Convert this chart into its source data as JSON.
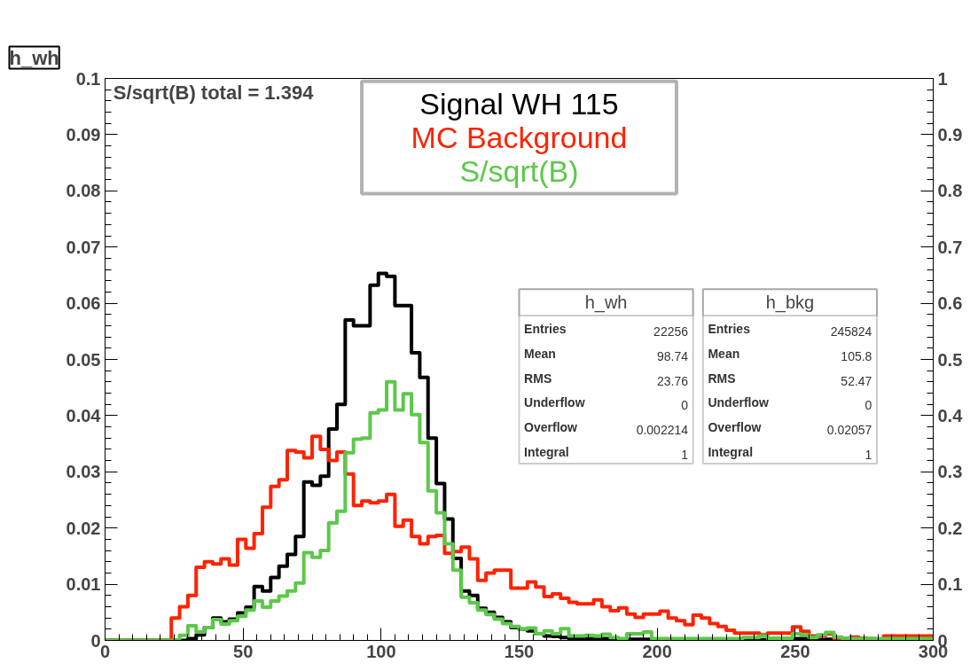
{
  "chart_data": {
    "type": "histogram",
    "title": "h_wh",
    "bins": [
      0,
      3,
      6,
      9,
      12,
      15,
      18,
      21,
      24,
      27,
      30,
      33,
      36,
      39,
      42,
      45,
      48,
      51,
      54,
      57,
      60,
      63,
      66,
      69,
      72,
      75,
      78,
      81,
      84,
      87,
      90,
      93,
      96,
      99,
      102,
      105,
      108,
      111,
      114,
      117,
      120,
      123,
      126,
      129,
      132,
      135,
      138,
      141,
      144,
      147,
      150,
      153,
      156,
      159,
      162,
      165,
      168,
      171,
      174,
      177,
      180,
      183,
      186,
      189,
      192,
      195,
      198,
      201,
      204,
      207,
      210,
      213,
      216,
      219,
      222,
      225,
      228,
      231,
      234,
      237,
      240,
      243,
      246,
      249,
      252,
      255,
      258,
      261,
      264,
      267,
      270,
      273,
      276,
      279,
      282,
      285,
      288,
      291,
      294,
      297,
      300
    ],
    "series": [
      {
        "name": "Signal WH 115",
        "color": "#000000",
        "values": [
          0,
          0,
          0,
          0,
          0,
          0,
          0,
          0,
          0,
          0,
          0.0003,
          0.001,
          0.0023,
          0.004,
          0.0033,
          0.0038,
          0.0049,
          0.0059,
          0.0096,
          0.0088,
          0.0112,
          0.0132,
          0.0153,
          0.0185,
          0.0282,
          0.0276,
          0.0292,
          0.0376,
          0.042,
          0.057,
          0.056,
          0.056,
          0.0632,
          0.0653,
          0.0648,
          0.0596,
          0.0596,
          0.0512,
          0.0468,
          0.036,
          0.0279,
          0.0216,
          0.0146,
          0.0088,
          0.008,
          0.0057,
          0.005,
          0.0041,
          0.0033,
          0.0023,
          0.002,
          0.0017,
          0.0012,
          0.0008,
          0.0007,
          0.0005,
          0.0003,
          0.0004,
          0.0003,
          0.0002,
          0.0003,
          0.0002,
          0.0002,
          0.0002,
          0.0002,
          0.0002,
          0.0001,
          0.0001,
          0.0001,
          0.0001,
          0.0001,
          0.0001,
          0.0001,
          0.0001,
          0.0001,
          0.0001,
          0.0001,
          0.0001,
          0.0001,
          0.0001,
          0.0001,
          0.0001,
          0.0001,
          0.0003,
          0.0003,
          0.0001,
          0.0001,
          0.0002,
          0.0001,
          0.0001,
          0,
          0,
          0,
          0,
          0,
          0,
          0,
          0,
          0,
          0
        ]
      },
      {
        "name": "MC Background",
        "color": "#ff2200",
        "values": [
          0,
          0,
          0,
          0,
          0,
          0,
          0,
          0,
          0.004,
          0.006,
          0.008,
          0.013,
          0.014,
          0.0136,
          0.0145,
          0.0134,
          0.018,
          0.0164,
          0.019,
          0.0237,
          0.0274,
          0.0286,
          0.0338,
          0.0335,
          0.0325,
          0.0363,
          0.034,
          0.032,
          0.0335,
          0.0296,
          0.024,
          0.0248,
          0.0245,
          0.0248,
          0.026,
          0.0203,
          0.0214,
          0.0185,
          0.0172,
          0.0185,
          0.0187,
          0.0155,
          0.0158,
          0.0166,
          0.0145,
          0.0107,
          0.012,
          0.0125,
          0.0125,
          0.0093,
          0.0093,
          0.0104,
          0.0095,
          0.0078,
          0.0083,
          0.0075,
          0.0068,
          0.0065,
          0.0065,
          0.0072,
          0.006,
          0.0053,
          0.0058,
          0.0047,
          0.0041,
          0.0047,
          0.0047,
          0.0052,
          0.004,
          0.0035,
          0.0028,
          0.0045,
          0.004,
          0.003,
          0.0025,
          0.0018,
          0.0013,
          0.0013,
          0.0013,
          0.001,
          0.0013,
          0.0013,
          0.0013,
          0.0024,
          0.0016,
          0.0008,
          0.0008,
          0.0012,
          0.0004,
          0.0002,
          0.0006,
          0.0004,
          0.0003,
          0.0002,
          0.0008,
          0.0008,
          0.0008,
          0.0008,
          0.0008,
          0.0008
        ]
      },
      {
        "name": "S/sqrt(B)",
        "color": "#5cc84a",
        "axis": "y2",
        "values": [
          0,
          0,
          0,
          0,
          0,
          0,
          0,
          0,
          0,
          0.009,
          0.026,
          0.015,
          0.023,
          0.037,
          0.029,
          0.035,
          0.043,
          0.054,
          0.07,
          0.059,
          0.07,
          0.079,
          0.088,
          0.102,
          0.156,
          0.148,
          0.16,
          0.209,
          0.23,
          0.334,
          0.358,
          0.36,
          0.405,
          0.41,
          0.46,
          0.41,
          0.439,
          0.402,
          0.352,
          0.266,
          0.227,
          0.172,
          0.125,
          0.077,
          0.067,
          0.054,
          0.046,
          0.038,
          0.03,
          0.025,
          0.02,
          0.022,
          0.012,
          0.017,
          0.012,
          0.021,
          0.008,
          0.008,
          0.009,
          0.008,
          0.011,
          0.005,
          0.003,
          0.012,
          0.012,
          0.015,
          0.003,
          0.003,
          0.003,
          0.003,
          0.003,
          0.003,
          0.003,
          0.003,
          0.003,
          0.003,
          0.003,
          0.005,
          0.005,
          0.008,
          0.004,
          0.004,
          0.004,
          0.012,
          0.01,
          0.005,
          0.01,
          0.014,
          0.006,
          0.004,
          0.003,
          0.003,
          0.003,
          0.003,
          0.003,
          0.003,
          0.003,
          0.003,
          0.003,
          0.003
        ]
      }
    ],
    "xlim": [
      0,
      300
    ],
    "xticks": [
      0,
      50,
      100,
      150,
      200,
      250,
      300
    ],
    "ylim": [
      0,
      0.1
    ],
    "yticks": [
      0,
      0.01,
      0.02,
      0.03,
      0.04,
      0.05,
      0.06,
      0.07,
      0.08,
      0.09,
      0.1
    ],
    "y2lim": [
      0,
      1
    ],
    "y2ticks": [
      0,
      0.1,
      0.2,
      0.3,
      0.4,
      0.5,
      0.6,
      0.7,
      0.8,
      0.9,
      1
    ],
    "legend": "top",
    "annotations": [
      "S/sqrt(B) total = 1.394",
      "h_wh",
      "Entries",
      "22256",
      "Mean",
      "98.74",
      "RMS",
      "23.76",
      "Underflow",
      "0",
      "Overflow",
      "0.002214",
      "Integral",
      "1",
      "h_bkg",
      "Entries",
      "245824",
      "Mean",
      "105.8",
      "RMS",
      "52.47",
      "Underflow",
      "0",
      "Overflow",
      "0.02057",
      "Integral",
      "1"
    ]
  }
}
